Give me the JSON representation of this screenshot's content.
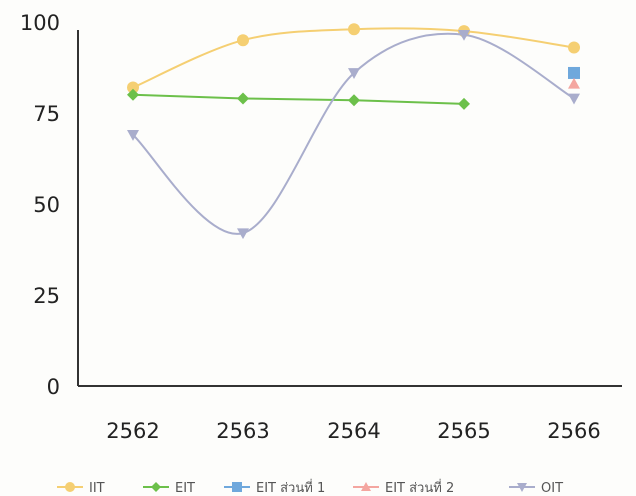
{
  "chart_data": {
    "type": "line",
    "x": [
      "2562",
      "2563",
      "2564",
      "2565",
      "2566"
    ],
    "ylim": [
      0,
      100
    ],
    "yticks": [
      0,
      25,
      50,
      75,
      100
    ],
    "grid": false,
    "legend_position": "bottom",
    "series": [
      {
        "name": "IIT",
        "values": [
          82,
          95,
          98,
          97.5,
          93
        ],
        "color": "#f5cf72",
        "marker": "circle",
        "smooth": true
      },
      {
        "name": "EIT",
        "values": [
          80,
          79,
          78.5,
          77.5,
          null
        ],
        "color": "#6cc04a",
        "marker": "diamond",
        "smooth": false
      },
      {
        "name": "EIT ส่วนที่ 1",
        "values": [
          null,
          null,
          null,
          null,
          86
        ],
        "color": "#6fa8dc",
        "marker": "square",
        "smooth": false
      },
      {
        "name": "EIT ส่วนที่ 2",
        "values": [
          null,
          null,
          null,
          null,
          83
        ],
        "color": "#f4a6a0",
        "marker": "triangle",
        "smooth": false
      },
      {
        "name": "OIT",
        "values": [
          69,
          42,
          86,
          96.5,
          79
        ],
        "color": "#a9adcc",
        "marker": "triangle-down",
        "smooth": true
      }
    ]
  }
}
